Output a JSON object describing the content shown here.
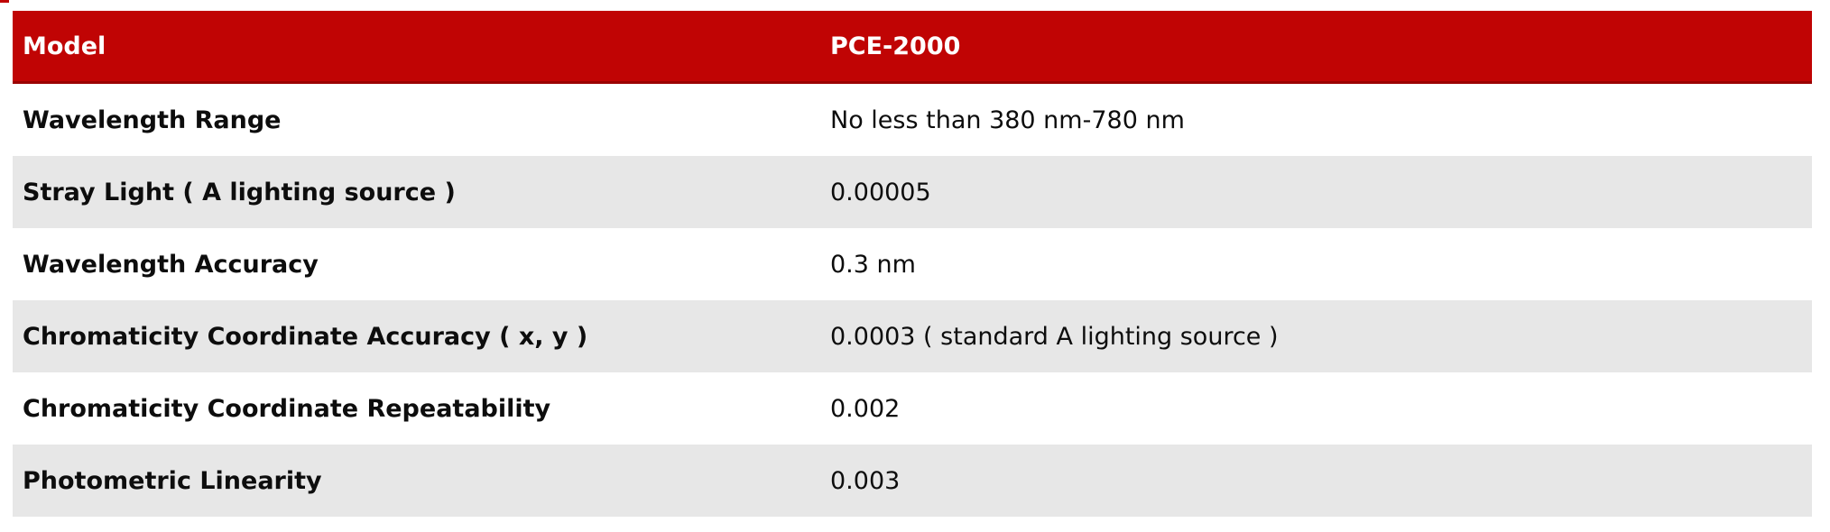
{
  "table": {
    "header": {
      "model_label": "Model",
      "model_value": "PCE-2000"
    },
    "rows": [
      {
        "label": "Wavelength Range",
        "value": "No less than 380 nm-780 nm"
      },
      {
        "label": "Stray Light ( A lighting source )",
        "value": "0.00005"
      },
      {
        "label": "Wavelength Accuracy",
        "value": "0.3 nm"
      },
      {
        "label": "Chromaticity Coordinate Accuracy ( x, y )",
        "value": "0.0003 ( standard A lighting source )"
      },
      {
        "label": "Chromaticity Coordinate Repeatability",
        "value": "0.002"
      },
      {
        "label": "Photometric Linearity",
        "value": "0.003"
      }
    ],
    "colors": {
      "header_bg": "#c00404",
      "header_border_bottom": "#9a0202",
      "header_text": "#ffffff",
      "row_bg": "#ffffff",
      "row_alt_bg": "#e7e7e7",
      "text": "#0d0d0d"
    }
  }
}
